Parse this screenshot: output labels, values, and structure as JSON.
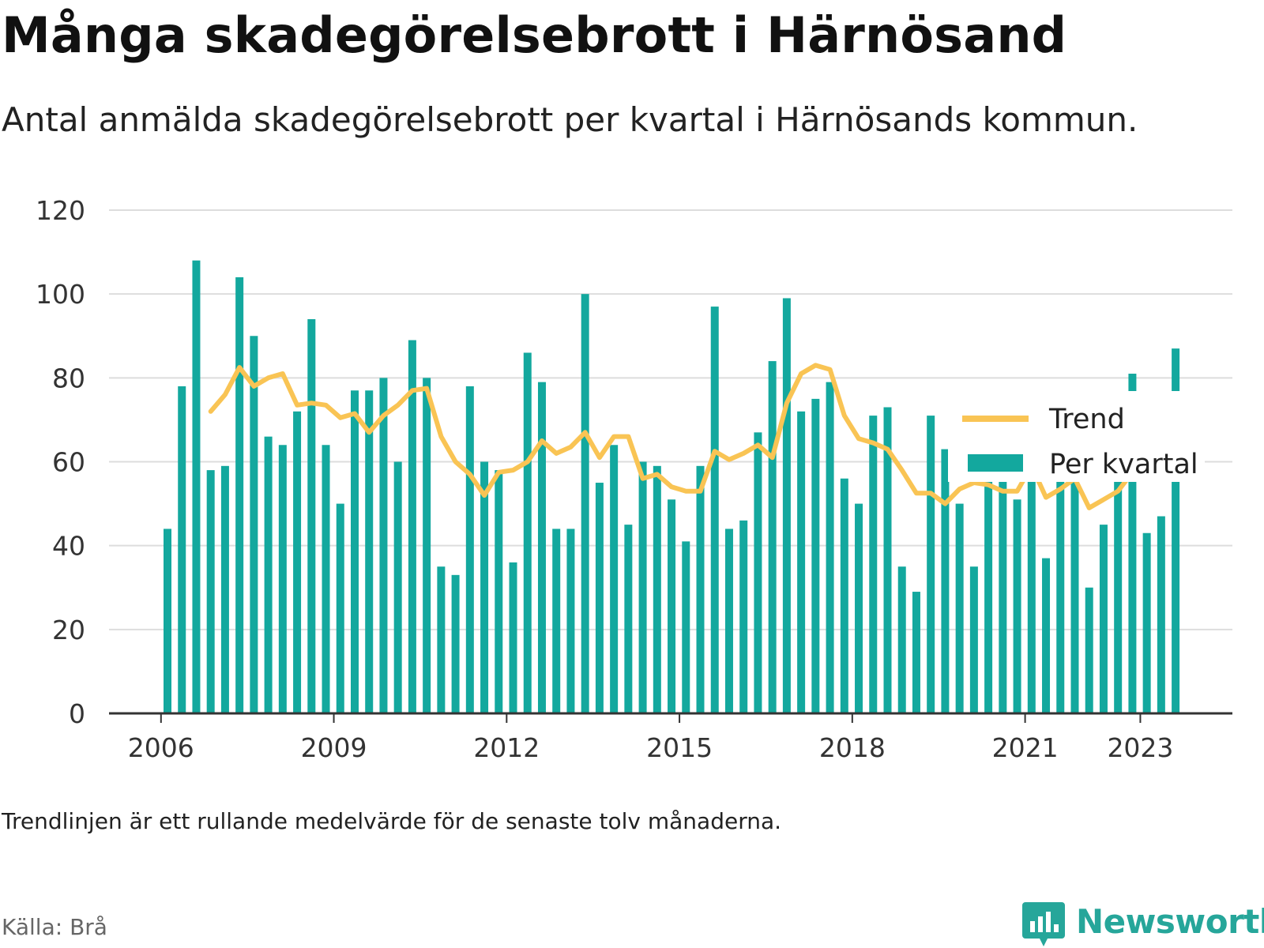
{
  "title": "Många skadegörelsebrott i Härnösand",
  "subtitle": "Antal anmälda skadegörelsebrott per kvartal i Härnösands kommun.",
  "footnote": "Trendlinjen är ett rullande medelvärde för de senaste tolv månaderna.",
  "source": "Källa: Brå",
  "brand": "Newsworthy",
  "colors": {
    "bars": "#13a89e",
    "trend": "#f9c454",
    "grid": "#dddddd",
    "axis": "#333333",
    "brand": "#26a69a"
  },
  "chart_data": {
    "type": "bar",
    "x_ticks": [
      "2006",
      "2009",
      "2012",
      "2015",
      "2018",
      "2021",
      "2023"
    ],
    "y_ticks": [
      "0",
      "20",
      "40",
      "60",
      "80",
      "100",
      "120"
    ],
    "ylim": [
      0,
      120
    ],
    "grid": true,
    "legend_position": "top-right",
    "series": [
      {
        "name": "Per kvartal",
        "type": "bar",
        "values": [
          44,
          78,
          108,
          58,
          59,
          104,
          90,
          66,
          64,
          72,
          94,
          64,
          50,
          77,
          77,
          80,
          60,
          89,
          80,
          35,
          33,
          78,
          60,
          58,
          36,
          86,
          79,
          44,
          44,
          100,
          55,
          64,
          45,
          60,
          59,
          51,
          41,
          59,
          97,
          44,
          46,
          67,
          84,
          99,
          72,
          75,
          79,
          56,
          50,
          71,
          73,
          35,
          29,
          71,
          63,
          50,
          35,
          68,
          57,
          51,
          57,
          37,
          65,
          62,
          30,
          45,
          74,
          81,
          43,
          47,
          87
        ]
      },
      {
        "name": "Trend",
        "type": "line",
        "values": [
          null,
          null,
          null,
          72,
          76,
          82.5,
          78,
          80,
          81,
          73.5,
          74,
          73.5,
          70.5,
          71.5,
          67,
          71,
          73.5,
          77,
          77.5,
          66,
          60,
          57,
          52,
          57.5,
          58,
          60,
          65,
          62,
          63.5,
          67,
          61,
          66,
          66,
          56,
          57,
          54,
          53,
          53,
          62.5,
          60.5,
          62,
          64,
          61,
          74,
          81,
          83,
          82,
          71,
          65.5,
          64.5,
          63,
          58,
          52.5,
          52.5,
          50,
          53.5,
          55,
          54.5,
          53,
          53,
          59,
          51.5,
          53.5,
          56,
          49,
          51,
          53,
          57.5,
          61,
          61.5,
          65
        ]
      }
    ]
  }
}
